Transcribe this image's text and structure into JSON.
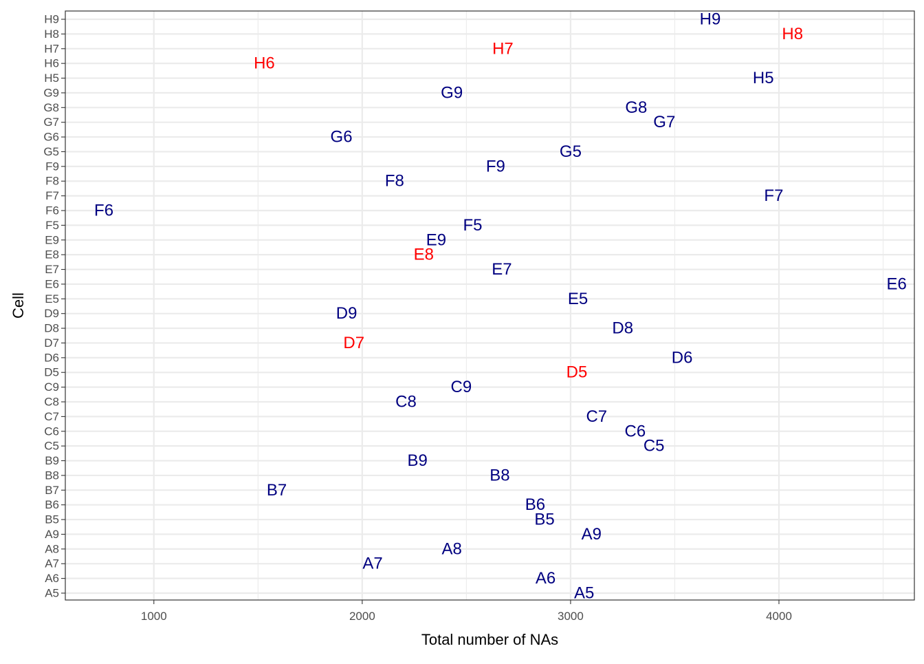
{
  "chart_data": {
    "type": "scatter",
    "mark": "text-labels",
    "xlabel": "Total number of NAs",
    "ylabel": "Cell",
    "xlim": [
      575,
      4650
    ],
    "x_ticks": [
      1000,
      2000,
      3000,
      4000
    ],
    "categories": [
      "A5",
      "A6",
      "A7",
      "A8",
      "A9",
      "B5",
      "B6",
      "B7",
      "B8",
      "B9",
      "C5",
      "C6",
      "C7",
      "C8",
      "C9",
      "D5",
      "D6",
      "D7",
      "D8",
      "D9",
      "E5",
      "E6",
      "E7",
      "E8",
      "E9",
      "F5",
      "F6",
      "F7",
      "F8",
      "F9",
      "G5",
      "G6",
      "G7",
      "G8",
      "G9",
      "H5",
      "H6",
      "H7",
      "H8",
      "H9"
    ],
    "grid": true,
    "colors": {
      "normal": "#000080",
      "highlight": "#FF0000",
      "grid": "#EBEBEB",
      "panel_border": "#333333",
      "tick_text": "#4D4D4D",
      "title_text": "#000000"
    },
    "points": [
      {
        "cell": "A5",
        "x": 3065,
        "highlight": false
      },
      {
        "cell": "A6",
        "x": 2880,
        "highlight": false
      },
      {
        "cell": "A7",
        "x": 2050,
        "highlight": false
      },
      {
        "cell": "A8",
        "x": 2430,
        "highlight": false
      },
      {
        "cell": "A9",
        "x": 3100,
        "highlight": false
      },
      {
        "cell": "B5",
        "x": 2875,
        "highlight": false
      },
      {
        "cell": "B6",
        "x": 2830,
        "highlight": false
      },
      {
        "cell": "B7",
        "x": 1590,
        "highlight": false
      },
      {
        "cell": "B8",
        "x": 2660,
        "highlight": false
      },
      {
        "cell": "B9",
        "x": 2265,
        "highlight": false
      },
      {
        "cell": "C5",
        "x": 3400,
        "highlight": false
      },
      {
        "cell": "C6",
        "x": 3310,
        "highlight": false
      },
      {
        "cell": "C7",
        "x": 3125,
        "highlight": false
      },
      {
        "cell": "C8",
        "x": 2210,
        "highlight": false
      },
      {
        "cell": "C9",
        "x": 2475,
        "highlight": false
      },
      {
        "cell": "D5",
        "x": 3030,
        "highlight": true
      },
      {
        "cell": "D6",
        "x": 3535,
        "highlight": false
      },
      {
        "cell": "D7",
        "x": 1960,
        "highlight": true
      },
      {
        "cell": "D8",
        "x": 3250,
        "highlight": false
      },
      {
        "cell": "D9",
        "x": 1925,
        "highlight": false
      },
      {
        "cell": "E5",
        "x": 3035,
        "highlight": false
      },
      {
        "cell": "E6",
        "x": 4565,
        "highlight": false
      },
      {
        "cell": "E7",
        "x": 2670,
        "highlight": false
      },
      {
        "cell": "E8",
        "x": 2295,
        "highlight": true
      },
      {
        "cell": "E9",
        "x": 2355,
        "highlight": false
      },
      {
        "cell": "F5",
        "x": 2530,
        "highlight": false
      },
      {
        "cell": "F6",
        "x": 760,
        "highlight": false
      },
      {
        "cell": "F7",
        "x": 3975,
        "highlight": false
      },
      {
        "cell": "F8",
        "x": 2155,
        "highlight": false
      },
      {
        "cell": "F9",
        "x": 2640,
        "highlight": false
      },
      {
        "cell": "G5",
        "x": 3000,
        "highlight": false
      },
      {
        "cell": "G6",
        "x": 1900,
        "highlight": false
      },
      {
        "cell": "G7",
        "x": 3450,
        "highlight": false
      },
      {
        "cell": "G8",
        "x": 3315,
        "highlight": false
      },
      {
        "cell": "G9",
        "x": 2430,
        "highlight": false
      },
      {
        "cell": "H5",
        "x": 3925,
        "highlight": false
      },
      {
        "cell": "H6",
        "x": 1530,
        "highlight": true
      },
      {
        "cell": "H7",
        "x": 2675,
        "highlight": true
      },
      {
        "cell": "H8",
        "x": 4065,
        "highlight": true
      },
      {
        "cell": "H9",
        "x": 3670,
        "highlight": false
      }
    ]
  }
}
